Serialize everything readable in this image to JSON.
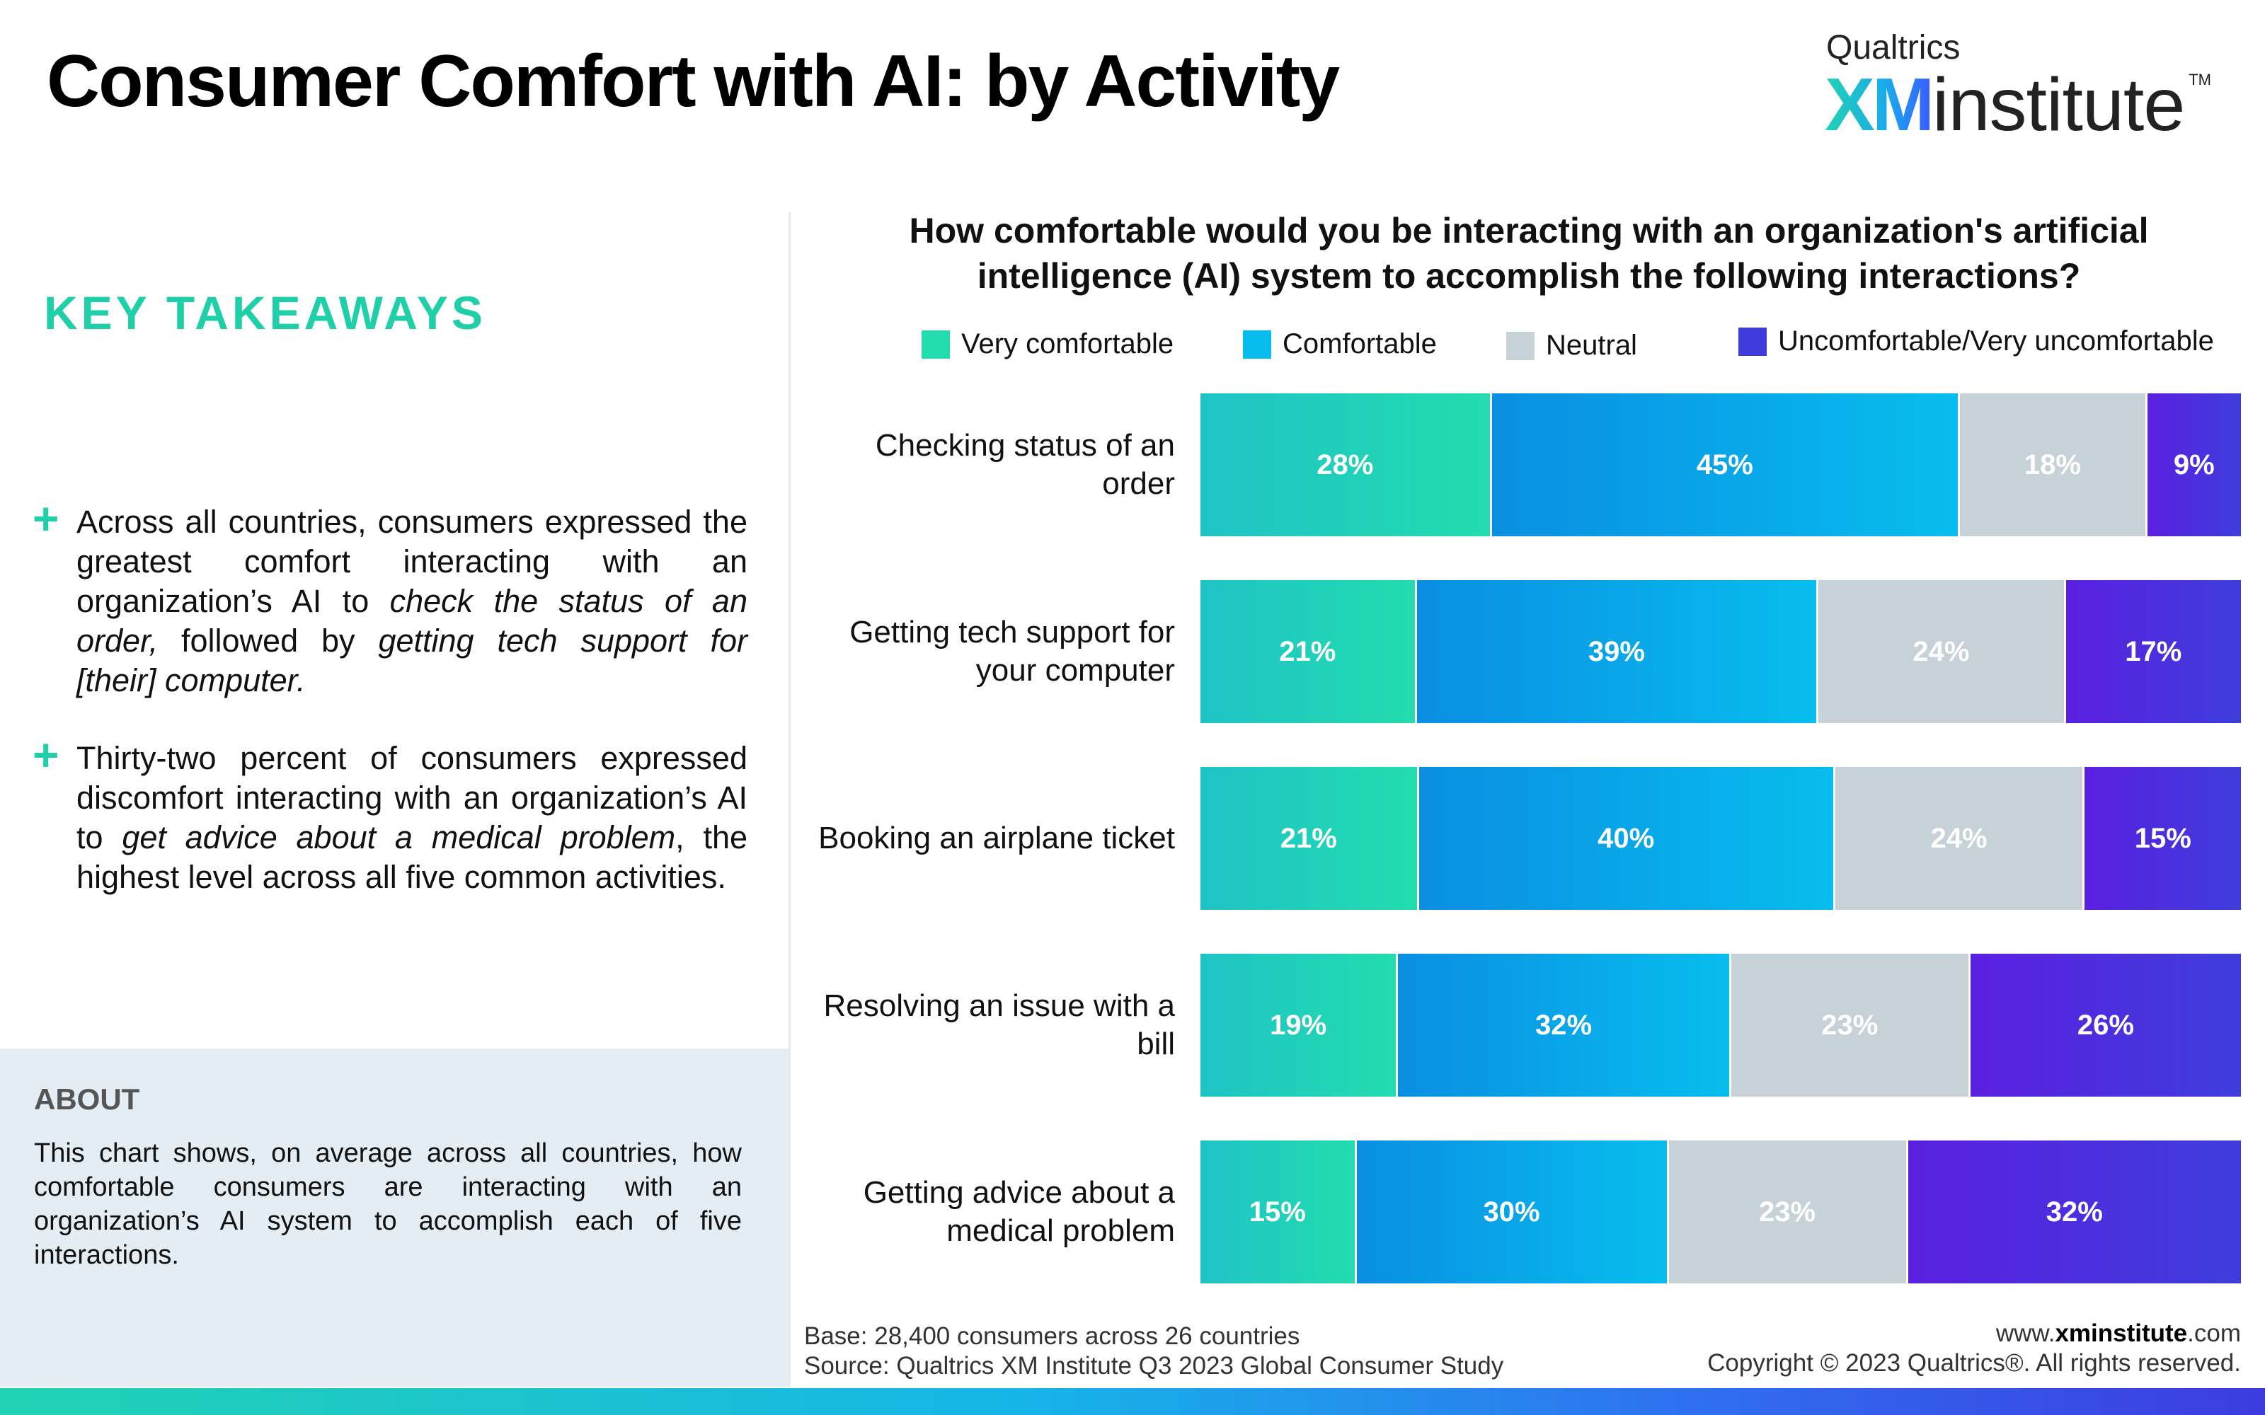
{
  "page": {
    "title": "Consumer Comfort with AI: by Activity"
  },
  "logo": {
    "top": "Qualtrics",
    "xm": "XM",
    "institute": "institute",
    "tm": "TM"
  },
  "takeaways": {
    "title": "KEY TAKEAWAYS",
    "items": [
      [
        "Across all countries, consumers expressed the greatest comfort interacting with an organization’s AI to ",
        {
          "em": "check the status of an order,"
        },
        " followed by ",
        {
          "em": "getting tech support for [their] computer."
        }
      ],
      [
        "Thirty-two percent of consumers expressed discomfort interacting with an organization’s AI to ",
        {
          "em": "get advice about a medical problem"
        },
        ", the highest level across all five common activities."
      ]
    ]
  },
  "about": {
    "title": "ABOUT",
    "text": "This chart shows, on average across all countries, how comfortable consumers are interacting with an organization’s AI system to accomplish each of five interactions."
  },
  "footer": {
    "base": "Base: 28,400 consumers across 26 countries",
    "source": "Source: Qualtrics XM Institute Q3 2023 Global Consumer Study",
    "website_prefix": "www.",
    "website_bold": "xminstitute",
    "website_suffix": ".com",
    "copyright": "Copyright © 2023 Qualtrics®. All rights reserved."
  },
  "colors": {
    "accent": "#1fcfa8",
    "very_comfortable": [
      "#1fc3c6",
      "#22dcae"
    ],
    "comfortable": [
      "#0a8ee2",
      "#07bdee"
    ],
    "neutral": "#c6d1d8",
    "uncomfortable": [
      "#5b1fe0",
      "#3e3ddc"
    ]
  },
  "chart_data": {
    "type": "bar",
    "orientation": "horizontal",
    "stacked": true,
    "title": "How comfortable would you be interacting with an organization's artificial intelligence (AI) system to accomplish the following interactions?",
    "categories": [
      [
        "Checking status of an",
        "order"
      ],
      [
        "Getting tech support for",
        "your computer"
      ],
      [
        "Booking an airplane ticket"
      ],
      [
        "Resolving an issue with a",
        "bill"
      ],
      [
        "Getting advice about a",
        "medical problem"
      ]
    ],
    "series": [
      {
        "name": "Very comfortable",
        "values": [
          28,
          21,
          21,
          19,
          15
        ]
      },
      {
        "name": "Comfortable",
        "values": [
          45,
          39,
          40,
          32,
          30
        ]
      },
      {
        "name": "Neutral",
        "values": [
          18,
          24,
          24,
          23,
          23
        ]
      },
      {
        "name": "Uncomfortable/Very uncomfortable",
        "values": [
          9,
          17,
          15,
          26,
          32
        ]
      }
    ],
    "value_suffix": "%",
    "legend_position": "top",
    "grid": false
  }
}
